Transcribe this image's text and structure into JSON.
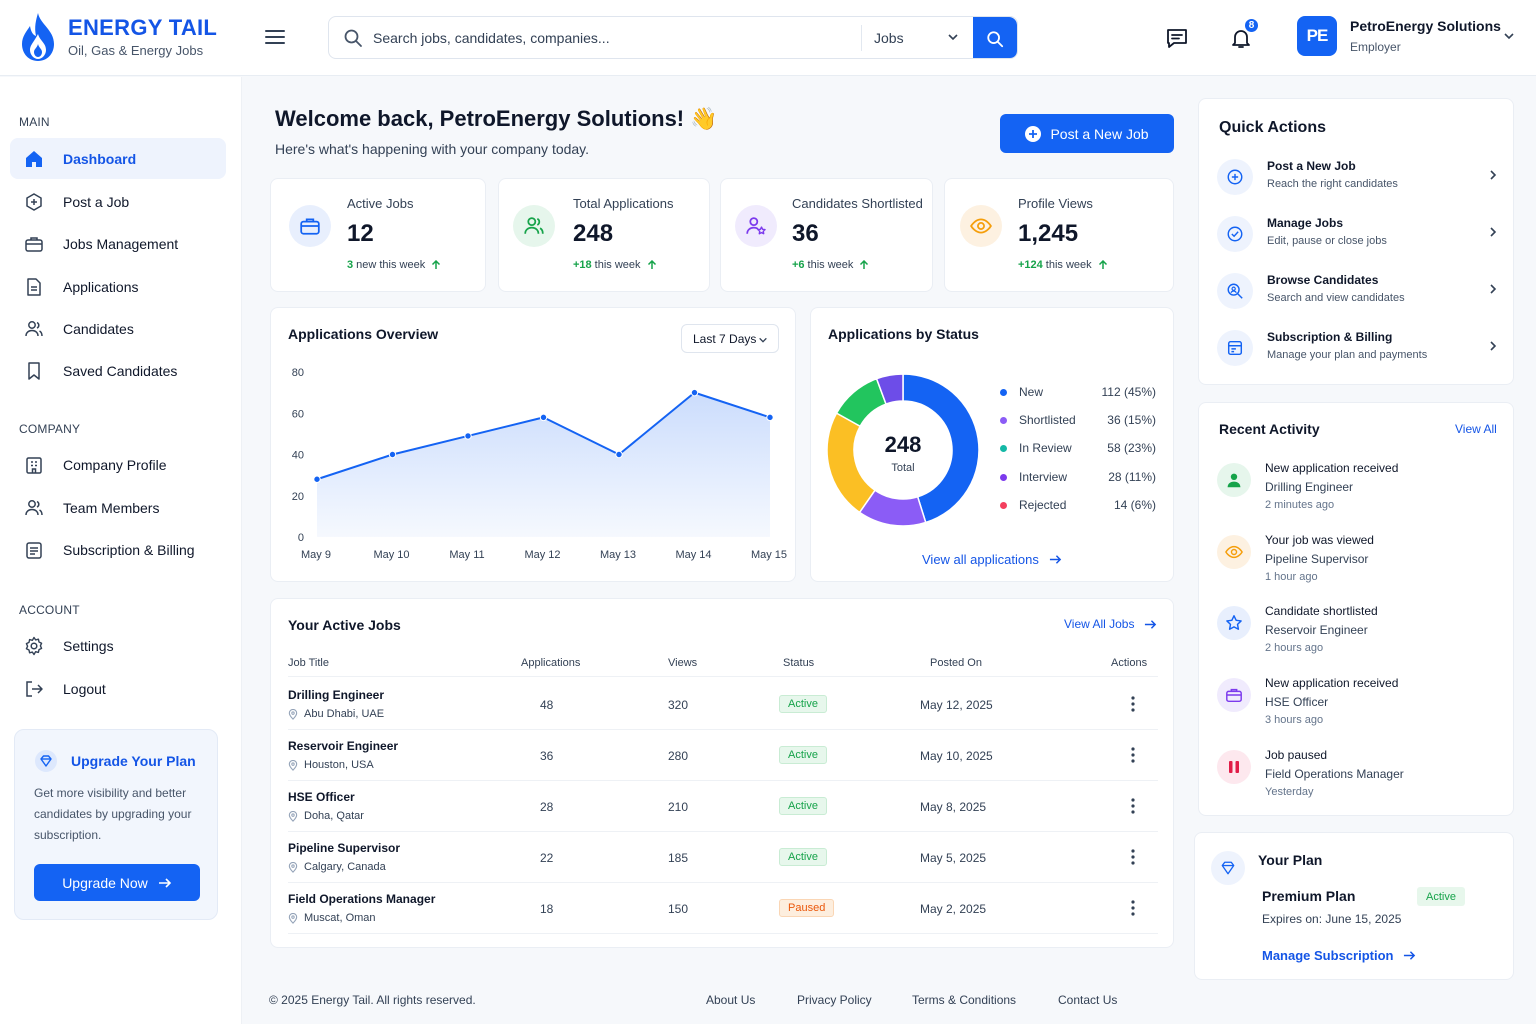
{
  "brand": {
    "title": "ENERGY TAIL",
    "subtitle": "Oil, Gas & Energy Jobs"
  },
  "search": {
    "placeholder": "Search jobs, candidates, companies...",
    "category": "Jobs"
  },
  "notifications": {
    "count": "8"
  },
  "account": {
    "initials": "PE",
    "name": "PetroEnergy Solutions",
    "role": "Employer"
  },
  "sidebar": {
    "main_label": "MAIN",
    "main": [
      {
        "label": "Dashboard",
        "icon": "home-icon"
      },
      {
        "label": "Post a Job",
        "icon": "plus-box-icon"
      },
      {
        "label": "Jobs Management",
        "icon": "briefcase-icon"
      },
      {
        "label": "Applications",
        "icon": "document-icon"
      },
      {
        "label": "Candidates",
        "icon": "users-icon"
      },
      {
        "label": "Saved Candidates",
        "icon": "bookmark-icon"
      }
    ],
    "company_label": "COMPANY",
    "company": [
      {
        "label": "Company Profile",
        "icon": "building-icon"
      },
      {
        "label": "Team Members",
        "icon": "team-icon"
      },
      {
        "label": "Subscription & Billing",
        "icon": "billing-icon"
      }
    ],
    "account_label": "ACCOUNT",
    "account": [
      {
        "label": "Settings",
        "icon": "gear-icon"
      },
      {
        "label": "Logout",
        "icon": "logout-icon"
      }
    ],
    "upgrade": {
      "title": "Upgrade Your Plan",
      "text": "Get more visibility and better candidates by upgrading your subscription.",
      "button": "Upgrade Now"
    }
  },
  "welcome": {
    "title": "Welcome back, PetroEnergy Solutions! 👋",
    "subtitle": "Here's what's happening with your company today."
  },
  "post_job_button": "Post a New Job",
  "stats": [
    {
      "label": "Active Jobs",
      "value": "12",
      "change": "3",
      "change_text": "new this week",
      "color": "#1463f3"
    },
    {
      "label": "Total Applications",
      "value": "248",
      "change": "+18",
      "change_text": "this week",
      "color": "#16a34a"
    },
    {
      "label": "Candidates Shortlisted",
      "value": "36",
      "change": "+6",
      "change_text": "this week",
      "color": "#7c3aed"
    },
    {
      "label": "Profile Views",
      "value": "1,245",
      "change": "+124",
      "change_text": "this week",
      "color": "#f59e0b"
    }
  ],
  "overview": {
    "title": "Applications Overview",
    "range": "Last 7 Days"
  },
  "chart_data": [
    {
      "type": "area",
      "title": "Applications Overview",
      "categories": [
        "May 9",
        "May 10",
        "May 11",
        "May 12",
        "May 13",
        "May 14",
        "May 15"
      ],
      "values": [
        28,
        40,
        49,
        58,
        40,
        70,
        58
      ],
      "ylim": [
        0,
        80
      ],
      "yticks": [
        0,
        20,
        40,
        60,
        80
      ],
      "grid": false,
      "color": "#1463f3"
    },
    {
      "type": "pie",
      "title": "Applications by Status",
      "center_value": "248",
      "center_label": "Total",
      "slices": [
        {
          "label": "New",
          "value": 112,
          "pct": "45%",
          "color": "#1463f3"
        },
        {
          "label": "Shortlisted",
          "value": 36,
          "pct": "15%",
          "color": "#8b5cf6"
        },
        {
          "label": "In Review",
          "value": 58,
          "pct": "23%",
          "color": "#fbbf24"
        },
        {
          "label": "Interview",
          "value": 28,
          "pct": "11%",
          "color": "#22c55e"
        },
        {
          "label": "Rejected",
          "value": 14,
          "pct": "6%",
          "color": "#6d4de8"
        }
      ],
      "legend": [
        {
          "label": "New",
          "text": "112 (45%)",
          "color": "#1463f3"
        },
        {
          "label": "Shortlisted",
          "text": "36 (15%)",
          "color": "#8b5cf6"
        },
        {
          "label": "In Review",
          "text": "58 (23%)",
          "color": "#14b8a6"
        },
        {
          "label": "Interview",
          "text": "28 (11%)",
          "color": "#7c3aed"
        },
        {
          "label": "Rejected",
          "text": "14 (6%)",
          "color": "#f43f5e"
        }
      ],
      "link": "View all applications"
    }
  ],
  "jobs": {
    "title": "Your Active Jobs",
    "view_all": "View All Jobs",
    "headers": [
      "Job Title",
      "Applications",
      "Views",
      "Status",
      "Posted On",
      "Actions"
    ],
    "rows": [
      {
        "title": "Drilling Engineer",
        "location": "Abu Dhabi, UAE",
        "applications": "48",
        "views": "320",
        "status": "Active",
        "posted": "May 12, 2025"
      },
      {
        "title": "Reservoir Engineer",
        "location": "Houston, USA",
        "applications": "36",
        "views": "280",
        "status": "Active",
        "posted": "May 10, 2025"
      },
      {
        "title": "HSE Officer",
        "location": "Doha, Qatar",
        "applications": "28",
        "views": "210",
        "status": "Active",
        "posted": "May 8, 2025"
      },
      {
        "title": "Pipeline Supervisor",
        "location": "Calgary, Canada",
        "applications": "22",
        "views": "185",
        "status": "Active",
        "posted": "May 5, 2025"
      },
      {
        "title": "Field Operations Manager",
        "location": "Muscat, Oman",
        "applications": "18",
        "views": "150",
        "status": "Paused",
        "posted": "May 2, 2025"
      }
    ]
  },
  "quick_actions": {
    "title": "Quick Actions",
    "items": [
      {
        "title": "Post a New Job",
        "subtitle": "Reach the right candidates"
      },
      {
        "title": "Manage Jobs",
        "subtitle": "Edit, pause or close jobs"
      },
      {
        "title": "Browse Candidates",
        "subtitle": "Search and view candidates"
      },
      {
        "title": "Subscription & Billing",
        "subtitle": "Manage your plan and payments"
      }
    ]
  },
  "recent_activity": {
    "title": "Recent Activity",
    "view_all": "View All",
    "items": [
      {
        "title": "New application received",
        "subtitle": "Drilling Engineer",
        "time": "2 minutes ago",
        "color": "#16a34a"
      },
      {
        "title": "Your job was viewed",
        "subtitle": "Pipeline Supervisor",
        "time": "1 hour ago",
        "color": "#f59e0b"
      },
      {
        "title": "Candidate shortlisted",
        "subtitle": "Reservoir Engineer",
        "time": "2 hours ago",
        "color": "#1463f3"
      },
      {
        "title": "New application received",
        "subtitle": "HSE Officer",
        "time": "3 hours ago",
        "color": "#7c3aed"
      },
      {
        "title": "Job paused",
        "subtitle": "Field Operations Manager",
        "time": "Yesterday",
        "color": "#e11d48"
      }
    ]
  },
  "plan": {
    "title": "Your Plan",
    "name": "Premium Plan",
    "status": "Active",
    "expires": "Expires on: June 15, 2025",
    "manage": "Manage Subscription"
  },
  "footer": {
    "copyright": "© 2025 Energy Tail. All rights reserved.",
    "links": [
      "About Us",
      "Privacy Policy",
      "Terms & Conditions",
      "Contact Us"
    ]
  }
}
